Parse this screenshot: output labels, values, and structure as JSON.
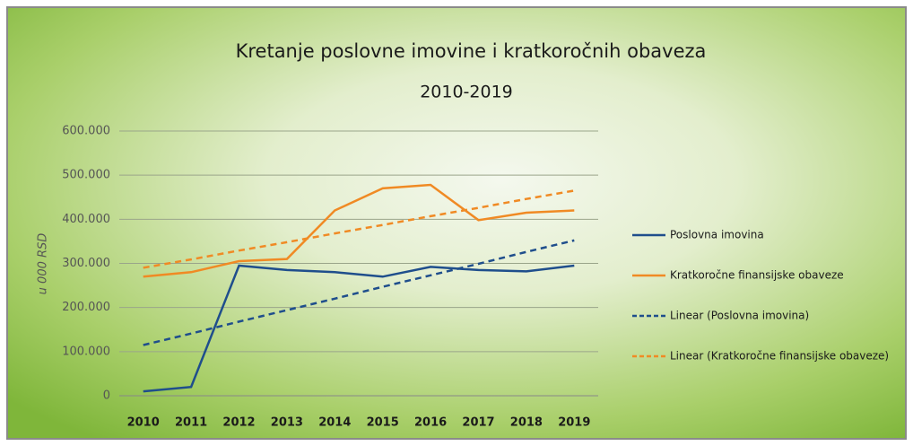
{
  "chart_data": {
    "type": "line",
    "title": "Kretanje poslovne imovine i kratkoročnih obaveza",
    "subtitle": "2010-2019",
    "y_label": "u 000 RSD",
    "categories": [
      "2010",
      "2011",
      "2012",
      "2013",
      "2014",
      "2015",
      "2016",
      "2017",
      "2018",
      "2019"
    ],
    "series": [
      {
        "name": "Poslovna imovina",
        "color": "#1f4e8c",
        "dash": false,
        "values": [
          10000,
          20000,
          295000,
          285000,
          280000,
          270000,
          292000,
          285000,
          282000,
          295000
        ]
      },
      {
        "name": "Kratkoročne finansijske obaveze",
        "color": "#f08a24",
        "dash": false,
        "values": [
          270000,
          280000,
          305000,
          310000,
          420000,
          470000,
          478000,
          398000,
          415000,
          420000
        ]
      },
      {
        "name": "Linear (Poslovna imovina)",
        "color": "#1f4e8c",
        "dash": true,
        "values": [
          115000,
          141000,
          168000,
          194000,
          220000,
          247000,
          273000,
          299000,
          326000,
          352000
        ]
      },
      {
        "name": "Linear (Kratkoročne finansijske obaveze)",
        "color": "#f08a24",
        "dash": true,
        "values": [
          290000,
          309000,
          329000,
          348000,
          368000,
          387000,
          407000,
          426000,
          446000,
          465000
        ]
      }
    ],
    "ylim": [
      0,
      600000
    ],
    "yticks": [
      0,
      {
        "value": 100000,
        "label": "100.000"
      },
      {
        "value": 200000,
        "label": "200.000"
      },
      {
        "value": 300000,
        "label": "300.000"
      },
      {
        "value": 400000,
        "label": "400.000"
      },
      {
        "value": 500000,
        "label": "500.000"
      },
      {
        "value": 600000,
        "label": "600.000"
      }
    ],
    "grid": true,
    "legend": "right"
  }
}
